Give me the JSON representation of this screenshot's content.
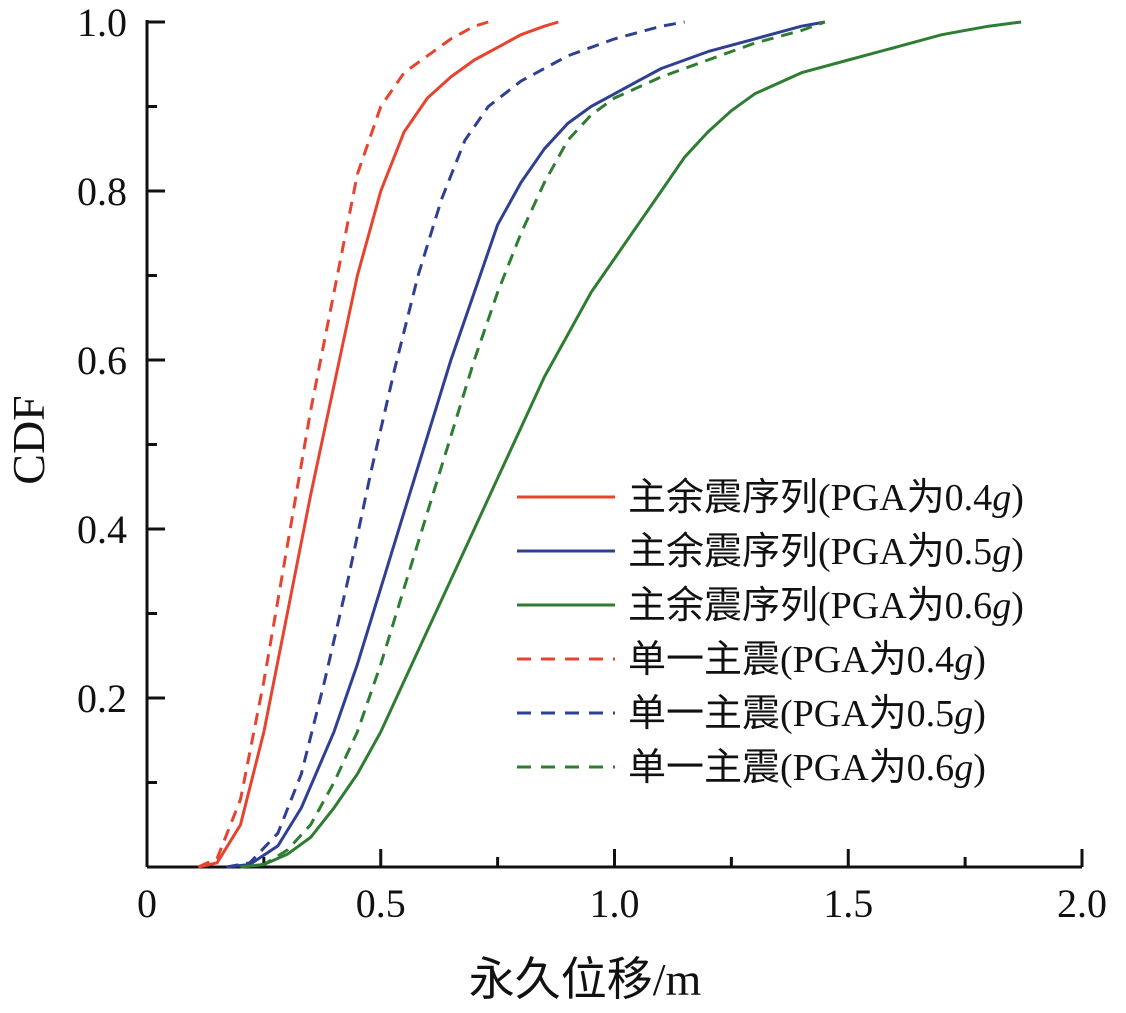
{
  "chart_data": {
    "type": "line",
    "title": "",
    "xlabel": "永久位移/m",
    "ylabel": "CDF",
    "xlim": [
      0,
      2.0
    ],
    "ylim": [
      0,
      1.0
    ],
    "xticks": [
      0,
      0.5,
      1.0,
      1.5,
      2.0
    ],
    "xtick_labels": [
      "0",
      "0.5",
      "1.0",
      "1.5",
      "2.0"
    ],
    "yticks": [
      0.2,
      0.4,
      0.6,
      0.8,
      1.0
    ],
    "ytick_labels": [
      "0.2",
      "0.4",
      "0.6",
      "0.8",
      "1.0"
    ],
    "grid": false,
    "legend_position": "center-right",
    "series": [
      {
        "name": "主余震序列(PGA为0.4",
        "name_suffix": "g",
        "name_close": ")",
        "color": "#e8432e",
        "style": "solid",
        "points": [
          [
            0.11,
            0
          ],
          [
            0.15,
            0.005
          ],
          [
            0.2,
            0.05
          ],
          [
            0.25,
            0.16
          ],
          [
            0.3,
            0.3
          ],
          [
            0.35,
            0.44
          ],
          [
            0.4,
            0.57
          ],
          [
            0.45,
            0.7
          ],
          [
            0.5,
            0.8
          ],
          [
            0.55,
            0.87
          ],
          [
            0.6,
            0.91
          ],
          [
            0.65,
            0.935
          ],
          [
            0.7,
            0.955
          ],
          [
            0.75,
            0.97
          ],
          [
            0.8,
            0.985
          ],
          [
            0.85,
            0.995
          ],
          [
            0.88,
            1.0
          ]
        ]
      },
      {
        "name": "主余震序列(PGA为0.5",
        "name_suffix": "g",
        "name_close": ")",
        "color": "#2f3f94",
        "style": "solid",
        "points": [
          [
            0.17,
            0
          ],
          [
            0.22,
            0.003
          ],
          [
            0.28,
            0.025
          ],
          [
            0.33,
            0.07
          ],
          [
            0.4,
            0.16
          ],
          [
            0.45,
            0.24
          ],
          [
            0.5,
            0.33
          ],
          [
            0.55,
            0.42
          ],
          [
            0.6,
            0.51
          ],
          [
            0.65,
            0.6
          ],
          [
            0.7,
            0.68
          ],
          [
            0.75,
            0.76
          ],
          [
            0.8,
            0.81
          ],
          [
            0.85,
            0.85
          ],
          [
            0.9,
            0.88
          ],
          [
            0.95,
            0.9
          ],
          [
            1.0,
            0.915
          ],
          [
            1.05,
            0.93
          ],
          [
            1.1,
            0.945
          ],
          [
            1.2,
            0.965
          ],
          [
            1.3,
            0.98
          ],
          [
            1.4,
            0.995
          ],
          [
            1.45,
            1.0
          ]
        ]
      },
      {
        "name": "主余震序列(PGA为0.6",
        "name_suffix": "g",
        "name_close": ")",
        "color": "#2e7d32",
        "style": "solid",
        "points": [
          [
            0.2,
            0
          ],
          [
            0.25,
            0.003
          ],
          [
            0.3,
            0.015
          ],
          [
            0.35,
            0.035
          ],
          [
            0.4,
            0.07
          ],
          [
            0.45,
            0.11
          ],
          [
            0.5,
            0.16
          ],
          [
            0.55,
            0.22
          ],
          [
            0.6,
            0.28
          ],
          [
            0.65,
            0.34
          ],
          [
            0.7,
            0.4
          ],
          [
            0.75,
            0.46
          ],
          [
            0.8,
            0.52
          ],
          [
            0.85,
            0.58
          ],
          [
            0.9,
            0.63
          ],
          [
            0.95,
            0.68
          ],
          [
            1.0,
            0.72
          ],
          [
            1.05,
            0.76
          ],
          [
            1.1,
            0.8
          ],
          [
            1.15,
            0.84
          ],
          [
            1.2,
            0.87
          ],
          [
            1.25,
            0.895
          ],
          [
            1.3,
            0.915
          ],
          [
            1.4,
            0.94
          ],
          [
            1.5,
            0.955
          ],
          [
            1.6,
            0.97
          ],
          [
            1.7,
            0.985
          ],
          [
            1.8,
            0.995
          ],
          [
            1.87,
            1.0
          ]
        ]
      },
      {
        "name": "单一主震(PGA为0.4",
        "name_suffix": "g",
        "name_close": ")",
        "color": "#e8432e",
        "style": "dashed",
        "points": [
          [
            0.11,
            0
          ],
          [
            0.15,
            0.01
          ],
          [
            0.2,
            0.08
          ],
          [
            0.25,
            0.22
          ],
          [
            0.3,
            0.38
          ],
          [
            0.35,
            0.54
          ],
          [
            0.4,
            0.68
          ],
          [
            0.45,
            0.82
          ],
          [
            0.5,
            0.9
          ],
          [
            0.55,
            0.94
          ],
          [
            0.6,
            0.96
          ],
          [
            0.65,
            0.98
          ],
          [
            0.7,
            0.995
          ],
          [
            0.73,
            1.0
          ]
        ]
      },
      {
        "name": "单一主震(PGA为0.5",
        "name_suffix": "g",
        "name_close": ")",
        "color": "#2f3f94",
        "style": "dashed",
        "points": [
          [
            0.17,
            0
          ],
          [
            0.22,
            0.005
          ],
          [
            0.28,
            0.04
          ],
          [
            0.33,
            0.11
          ],
          [
            0.38,
            0.22
          ],
          [
            0.43,
            0.34
          ],
          [
            0.48,
            0.47
          ],
          [
            0.53,
            0.59
          ],
          [
            0.58,
            0.7
          ],
          [
            0.63,
            0.79
          ],
          [
            0.68,
            0.86
          ],
          [
            0.73,
            0.9
          ],
          [
            0.8,
            0.93
          ],
          [
            0.9,
            0.96
          ],
          [
            1.0,
            0.98
          ],
          [
            1.1,
            0.995
          ],
          [
            1.15,
            1.0
          ]
        ]
      },
      {
        "name": "单一主震(PGA为0.6",
        "name_suffix": "g",
        "name_close": ")",
        "color": "#2e7d32",
        "style": "dashed",
        "points": [
          [
            0.2,
            0
          ],
          [
            0.25,
            0.003
          ],
          [
            0.3,
            0.02
          ],
          [
            0.35,
            0.05
          ],
          [
            0.4,
            0.1
          ],
          [
            0.45,
            0.16
          ],
          [
            0.5,
            0.24
          ],
          [
            0.55,
            0.33
          ],
          [
            0.6,
            0.42
          ],
          [
            0.65,
            0.51
          ],
          [
            0.7,
            0.6
          ],
          [
            0.75,
            0.68
          ],
          [
            0.8,
            0.75
          ],
          [
            0.85,
            0.81
          ],
          [
            0.9,
            0.86
          ],
          [
            0.95,
            0.89
          ],
          [
            1.0,
            0.91
          ],
          [
            1.1,
            0.935
          ],
          [
            1.2,
            0.955
          ],
          [
            1.3,
            0.975
          ],
          [
            1.4,
            0.99
          ],
          [
            1.45,
            1.0
          ]
        ]
      }
    ]
  }
}
